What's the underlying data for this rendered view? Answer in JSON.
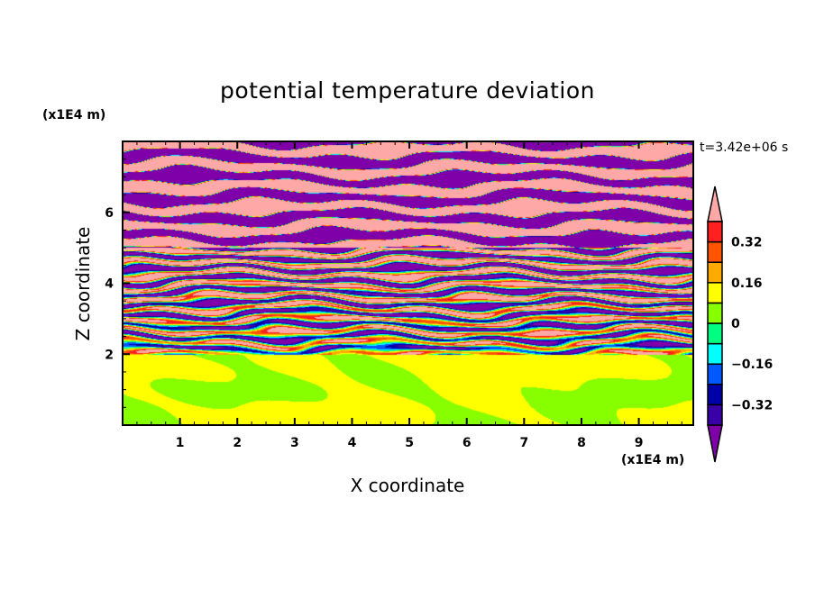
{
  "chart_data": {
    "type": "heatmap",
    "subtype": "filled-contour",
    "title": "potential temperature deviation",
    "xlabel": "X coordinate",
    "ylabel": "Z coordinate",
    "x_unit": "(x1E4 m)",
    "y_unit": "(x1E4 m)",
    "time_label": "t=3.42e+06 s",
    "xlim": [
      0,
      9.95
    ],
    "ylim": [
      0,
      8
    ],
    "xticks": [
      1,
      2,
      3,
      4,
      5,
      6,
      7,
      8,
      9
    ],
    "yticks": [
      2,
      4,
      6
    ],
    "levels": [
      -0.4,
      -0.32,
      -0.24,
      -0.16,
      -0.08,
      0,
      0.08,
      0.16,
      0.24,
      0.32,
      0.4
    ],
    "colorbar_labels": [
      "0.32",
      "0.16",
      "0",
      "-0.16",
      "-0.32"
    ],
    "colorbar_label_values": [
      0.32,
      0.16,
      0,
      -0.16,
      -0.32
    ],
    "colors": [
      "#7f00a8",
      "#3a00a8",
      "#0000a8",
      "#0058ff",
      "#00ffff",
      "#00ff80",
      "#88ff00",
      "#ffff00",
      "#ffaa00",
      "#ff5500",
      "#ff2020",
      "#ffa8a8"
    ],
    "regions": [
      {
        "z_range": [
          0,
          2
        ],
        "description_values": [
          0,
          0.08
        ]
      },
      {
        "z_range": [
          2,
          5
        ],
        "description_values": [
          -0.4,
          0.4
        ]
      },
      {
        "z_range": [
          5,
          8
        ],
        "description_values": [
          -0.4,
          0.4
        ]
      }
    ]
  }
}
